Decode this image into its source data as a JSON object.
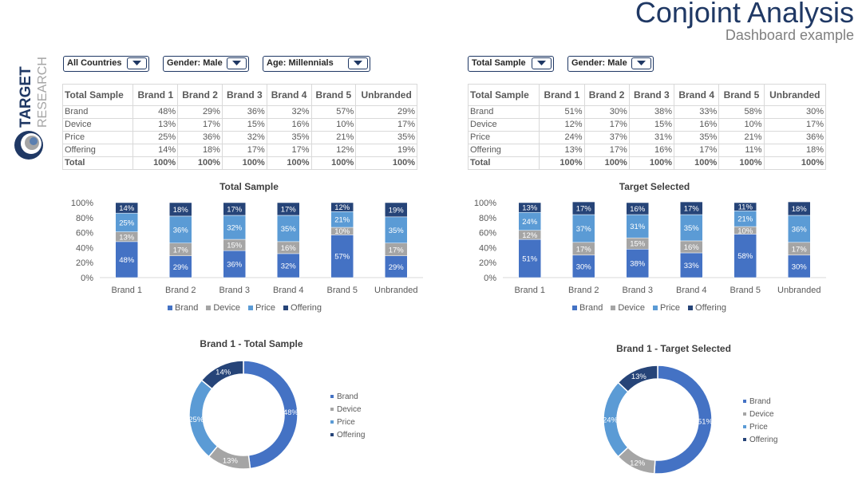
{
  "header": {
    "title": "Conjoint Analysis",
    "subtitle": "Dashboard example"
  },
  "logo": {
    "line1": "TARGET",
    "line2": "RESEARCH"
  },
  "colors": {
    "Brand": "#4472c4",
    "Device": "#a5a5a5",
    "Price": "#5b9bd5",
    "Offering": "#264478"
  },
  "filters_left": [
    "All Countries",
    "Gender: Male",
    "Age: Millennials"
  ],
  "filters_right": [
    "Total Sample",
    "Gender: Male"
  ],
  "table_left": {
    "header": [
      "Total Sample",
      "Brand 1",
      "Brand 2",
      "Brand 3",
      "Brand 4",
      "Brand 5",
      "Unbranded"
    ],
    "rows": [
      [
        "Brand",
        "48%",
        "29%",
        "36%",
        "32%",
        "57%",
        "29%"
      ],
      [
        "Device",
        "13%",
        "17%",
        "15%",
        "16%",
        "10%",
        "17%"
      ],
      [
        "Price",
        "25%",
        "36%",
        "32%",
        "35%",
        "21%",
        "35%"
      ],
      [
        "Offering",
        "14%",
        "18%",
        "17%",
        "17%",
        "12%",
        "19%"
      ],
      [
        "Total",
        "100%",
        "100%",
        "100%",
        "100%",
        "100%",
        "100%"
      ]
    ]
  },
  "table_right": {
    "header": [
      "Total Sample",
      "Brand 1",
      "Brand 2",
      "Brand 3",
      "Brand 4",
      "Brand 5",
      "Unbranded"
    ],
    "rows": [
      [
        "Brand",
        "51%",
        "30%",
        "38%",
        "33%",
        "58%",
        "30%"
      ],
      [
        "Device",
        "12%",
        "17%",
        "15%",
        "16%",
        "10%",
        "17%"
      ],
      [
        "Price",
        "24%",
        "37%",
        "31%",
        "35%",
        "21%",
        "36%"
      ],
      [
        "Offering",
        "13%",
        "17%",
        "16%",
        "17%",
        "11%",
        "18%"
      ],
      [
        "Total",
        "100%",
        "100%",
        "100%",
        "100%",
        "100%",
        "100%"
      ]
    ]
  },
  "chart_data": [
    {
      "type": "bar",
      "stacked": true,
      "title": "Total Sample",
      "categories": [
        "Brand 1",
        "Brand 2",
        "Brand 3",
        "Brand 4",
        "Brand 5",
        "Unbranded"
      ],
      "series": [
        {
          "name": "Brand",
          "values": [
            48,
            29,
            36,
            32,
            57,
            29
          ]
        },
        {
          "name": "Device",
          "values": [
            13,
            17,
            15,
            16,
            10,
            17
          ]
        },
        {
          "name": "Price",
          "values": [
            25,
            36,
            32,
            35,
            21,
            35
          ]
        },
        {
          "name": "Offering",
          "values": [
            14,
            18,
            17,
            17,
            12,
            19
          ]
        }
      ],
      "yticks": [
        "0%",
        "20%",
        "40%",
        "60%",
        "80%",
        "100%"
      ],
      "ylim": [
        0,
        100
      ],
      "legend": "bottom"
    },
    {
      "type": "bar",
      "stacked": true,
      "title": "Target Selected",
      "categories": [
        "Brand 1",
        "Brand 2",
        "Brand 3",
        "Brand 4",
        "Brand 5",
        "Unbranded"
      ],
      "series": [
        {
          "name": "Brand",
          "values": [
            51,
            30,
            38,
            33,
            58,
            30
          ]
        },
        {
          "name": "Device",
          "values": [
            12,
            17,
            15,
            16,
            10,
            17
          ]
        },
        {
          "name": "Price",
          "values": [
            24,
            37,
            31,
            35,
            21,
            36
          ]
        },
        {
          "name": "Offering",
          "values": [
            13,
            17,
            16,
            17,
            11,
            18
          ]
        }
      ],
      "yticks": [
        "0%",
        "20%",
        "40%",
        "60%",
        "80%",
        "100%"
      ],
      "ylim": [
        0,
        100
      ],
      "legend": "bottom"
    },
    {
      "type": "pie",
      "donut": true,
      "title": "Brand 1 - Total Sample",
      "labels": [
        "Brand",
        "Device",
        "Price",
        "Offering"
      ],
      "values": [
        48,
        13,
        25,
        14
      ],
      "legend": "right"
    },
    {
      "type": "pie",
      "donut": true,
      "title": "Brand 1 - Target Selected",
      "labels": [
        "Brand",
        "Device",
        "Price",
        "Offering"
      ],
      "values": [
        51,
        12,
        24,
        13
      ],
      "legend": "right"
    }
  ]
}
